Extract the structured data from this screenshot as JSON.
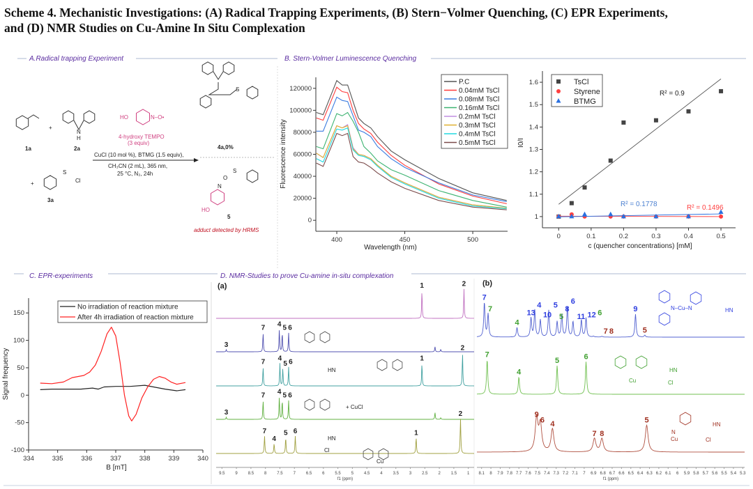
{
  "title": {
    "line1": "Scheme 4. Mechanistic Investigations: (A) Radical Trapping Experiments, (B) Stern−Volmer Quenching, (C) EPR Experiments,",
    "line2": "and (D) NMR Studies on Cu-Amine In Situ Complexation"
  },
  "sections": {
    "a": "A.Radical trapping  Experiment",
    "b": "B. Stern-Volmer  Luminescence   Quenching",
    "c": "C. EPR-experiments",
    "d": "D. NMR-Studies to prove Cu-amine in-situ complexation"
  },
  "colors": {
    "section": "#5a2ca0",
    "tempo": "#d04080",
    "hrms": "#c01020"
  },
  "panel_a": {
    "c1a": "1a",
    "c2a": "2a",
    "c3a": "3a",
    "c4a": "4a,0%",
    "c5": "5",
    "plus": "+",
    "nh_n": "N",
    "nh_h": "H",
    "tempo_ho": "HO",
    "tempo_no": "N–O•",
    "tempo_name": "4-hydroxy TEMPO",
    "tempo_equiv": "(3 equiv)",
    "cond1": "CuCl (10 mol %), BTMG (1.5 equiv),",
    "cond2": "CH₃CN (2 mL), 365 nm,",
    "cond3": "25 °C, N₂, 24h",
    "ts_cl": "Cl",
    "so2": "S",
    "o": "O",
    "n": "N",
    "ho": "HO",
    "hrms": "adduct detected by HRMS"
  },
  "chart_data": [
    {
      "type": "line",
      "id": "fluorescence",
      "xlabel": "Wavelength (nm)",
      "ylabel": "Fluorescence intensity",
      "xlim": [
        384.6,
        525.6
      ],
      "ylim": [
        -10000,
        130000
      ],
      "xticks": [
        400,
        450,
        500
      ],
      "yticks": [
        0,
        20000,
        40000,
        60000,
        80000,
        100000,
        120000
      ],
      "legend": "top-right",
      "x": [
        385,
        390,
        400,
        404,
        408,
        412,
        416,
        420,
        425,
        430,
        440,
        450,
        475,
        500,
        525
      ],
      "series": [
        {
          "name": "P.C",
          "color": "#555555",
          "values": [
            98000,
            96000,
            127000,
            123000,
            123000,
            108000,
            93000,
            88000,
            84000,
            76000,
            63000,
            55000,
            38000,
            25000,
            18000
          ]
        },
        {
          "name": "0.04mM TsCl",
          "color": "#ff3b3b",
          "values": [
            93000,
            91000,
            121000,
            117000,
            116000,
            100000,
            88000,
            83000,
            79000,
            71000,
            59000,
            50000,
            33000,
            22000,
            15000
          ]
        },
        {
          "name": "0.08mM TsCl",
          "color": "#3a7be0",
          "values": [
            81000,
            81000,
            112000,
            109000,
            108000,
            95000,
            82000,
            80000,
            76000,
            67000,
            56000,
            48000,
            34000,
            23000,
            17000
          ]
        },
        {
          "name": "0.16mM TsCl",
          "color": "#3cb371",
          "values": [
            67000,
            65000,
            97000,
            95000,
            98000,
            90000,
            80000,
            67000,
            61000,
            54000,
            46000,
            41000,
            27000,
            18000,
            12000
          ]
        },
        {
          "name": "0.2mM TsCl",
          "color": "#c08de0",
          "values": [
            61000,
            57000,
            86000,
            84000,
            87000,
            66000,
            60000,
            59000,
            56000,
            50000,
            40000,
            34000,
            21000,
            14000,
            11000
          ]
        },
        {
          "name": "0.3mM TsCl",
          "color": "#e0b030",
          "values": [
            61000,
            57000,
            86000,
            84000,
            86000,
            65000,
            60000,
            59000,
            56000,
            50000,
            40000,
            34000,
            21000,
            14000,
            11000
          ]
        },
        {
          "name": "0.4mM TsCl",
          "color": "#20d8e0",
          "values": [
            56000,
            53000,
            83000,
            82000,
            84000,
            64000,
            59000,
            58000,
            55000,
            49000,
            39000,
            33000,
            20000,
            13000,
            10500
          ]
        },
        {
          "name": "0.5mM TsCl",
          "color": "#7a4a4a",
          "values": [
            52000,
            49000,
            79000,
            77000,
            79000,
            58000,
            53000,
            52000,
            48000,
            43000,
            35000,
            29000,
            18000,
            12000,
            9500
          ]
        }
      ]
    },
    {
      "type": "scatter",
      "id": "stern-volmer",
      "xlabel": "c (quencher concentrations) [mM]",
      "ylabel": "I0/I",
      "xlim": [
        -0.05,
        0.545
      ],
      "ylim": [
        0.95,
        1.65
      ],
      "xticks": [
        0.0,
        0.1,
        0.2,
        0.3,
        0.4,
        0.5
      ],
      "yticks": [
        1.0,
        1.1,
        1.2,
        1.3,
        1.4,
        1.5,
        1.6
      ],
      "legend": "top-left",
      "x": [
        0,
        0.04,
        0.08,
        0.16,
        0.2,
        0.3,
        0.4,
        0.5
      ],
      "series": [
        {
          "name": "TsCl",
          "color": "#444444",
          "marker": "square",
          "values": [
            1.0,
            1.06,
            1.13,
            1.25,
            1.42,
            1.43,
            1.47,
            1.56
          ],
          "fit": [
            1.055,
            1.615
          ],
          "r2": "R² = 0.9"
        },
        {
          "name": "Styrene",
          "color": "#ff4040",
          "marker": "circle",
          "values": [
            1.0,
            1.01,
            1.0,
            1.0,
            1.0,
            1.0,
            1.0,
            1.0
          ],
          "fit": [
            1.002,
            1.0
          ],
          "r2": "R² = 0.1496"
        },
        {
          "name": "BTMG",
          "color": "#2a70e0",
          "marker": "triangle",
          "values": [
            1.0,
            1.0,
            1.01,
            1.01,
            1.0,
            1.0,
            1.0,
            1.02
          ],
          "fit": [
            0.999,
            1.012
          ],
          "r2": "R² = 0.1778"
        }
      ]
    },
    {
      "type": "line",
      "id": "epr",
      "xlabel": "B [mT]",
      "ylabel": "Signal frequency",
      "xlim": [
        334,
        340
      ],
      "ylim": [
        -100,
        177
      ],
      "xticks": [
        334,
        335,
        336,
        337,
        338,
        339,
        340
      ],
      "yticks": [
        -100,
        -50,
        0,
        50,
        100,
        150
      ],
      "legend": "top-right",
      "series": [
        {
          "name": "No irradiation of reaction mixture",
          "color": "#222222",
          "x": [
            334.4,
            334.8,
            335.3,
            335.8,
            336.2,
            336.4,
            336.6,
            337.0,
            337.5,
            338.0,
            338.3,
            338.7,
            339.1,
            339.4
          ],
          "values": [
            10,
            11,
            11,
            11,
            13,
            11,
            15,
            16,
            16,
            18,
            15,
            11,
            8,
            10
          ]
        },
        {
          "name": "After 4h irradiation of reaction mixture",
          "color": "#ff2020",
          "x": [
            334.4,
            334.8,
            335.2,
            335.5,
            335.9,
            336.1,
            336.3,
            336.5,
            336.7,
            336.85,
            337.0,
            337.15,
            337.3,
            337.45,
            337.55,
            337.7,
            337.9,
            338.1,
            338.3,
            338.5,
            338.7,
            338.9,
            339.1,
            339.4
          ],
          "values": [
            22,
            21,
            24,
            32,
            36,
            42,
            55,
            80,
            112,
            124,
            108,
            60,
            0,
            -38,
            -47,
            -35,
            -5,
            15,
            29,
            34,
            31,
            24,
            20,
            23
          ]
        }
      ]
    },
    {
      "type": "nmr",
      "id": "nmr-a",
      "panel_label": "(a)",
      "xlabel": "f1 (ppm)",
      "xlim": [
        9.7,
        0.8
      ],
      "xticks": [
        9.5,
        9.0,
        8.5,
        8.0,
        7.5,
        7.0,
        6.5,
        6.0,
        5.5,
        5.0,
        4.5,
        4.0,
        3.5,
        3.0,
        2.5,
        2.0,
        1.5,
        1.0
      ],
      "traces": [
        {
          "color": "#c070c0",
          "peaks": [
            {
              "ppm": 2.6,
              "h": 0.8,
              "label": "1"
            },
            {
              "ppm": 1.15,
              "h": 0.85,
              "label": "2"
            }
          ]
        },
        {
          "color": "#5050b0",
          "peaks": [
            {
              "ppm": 9.35,
              "h": 0.06,
              "label": "3"
            },
            {
              "ppm": 8.08,
              "h": 0.55,
              "label": "7"
            },
            {
              "ppm": 7.52,
              "h": 0.65,
              "label": "4"
            },
            {
              "ppm": 7.42,
              "h": 0.55,
              "label": "5"
            },
            {
              "ppm": 7.2,
              "h": 0.55,
              "label": "6"
            },
            {
              "ppm": 2.15,
              "h": 0.15,
              "label": ""
            },
            {
              "ppm": 1.95,
              "h": 0.07,
              "label": ""
            }
          ]
        },
        {
          "color": "#40a0a0",
          "peaks": [
            {
              "ppm": 8.08,
              "h": 0.55,
              "label": "7"
            },
            {
              "ppm": 7.5,
              "h": 0.65,
              "label": "4"
            },
            {
              "ppm": 7.4,
              "h": 0.5,
              "label": "5"
            },
            {
              "ppm": 7.2,
              "h": 0.55,
              "label": "6"
            },
            {
              "ppm": 2.6,
              "h": 0.65,
              "label": "1"
            },
            {
              "ppm": 1.2,
              "h": 0.95,
              "label": "2"
            }
          ]
        },
        {
          "color": "#60b040",
          "peaks": [
            {
              "ppm": 9.35,
              "h": 0.06,
              "label": "3"
            },
            {
              "ppm": 8.08,
              "h": 0.55,
              "label": "7"
            },
            {
              "ppm": 7.52,
              "h": 0.65,
              "label": "4"
            },
            {
              "ppm": 7.42,
              "h": 0.55,
              "label": "5"
            },
            {
              "ppm": 7.2,
              "h": 0.55,
              "label": "6"
            },
            {
              "ppm": 2.15,
              "h": 0.2,
              "label": ""
            },
            {
              "ppm": 1.95,
              "h": 0.05,
              "label": ""
            }
          ]
        },
        {
          "color": "#a0a040",
          "peaks": [
            {
              "ppm": 8.03,
              "h": 0.5,
              "label": "7"
            },
            {
              "ppm": 7.7,
              "h": 0.28,
              "label": "4"
            },
            {
              "ppm": 7.3,
              "h": 0.45,
              "label": "5"
            },
            {
              "ppm": 6.97,
              "h": 0.5,
              "label": "6"
            },
            {
              "ppm": 2.8,
              "h": 0.45,
              "label": "1"
            },
            {
              "ppm": 1.27,
              "h": 1.0,
              "label": "2"
            }
          ]
        }
      ],
      "structure_labels": {
        "cucl": "+ CuCl",
        "cl": "Cl",
        "cu": "Cu",
        "n": "N",
        "h": "H",
        "hn": "HN"
      }
    },
    {
      "type": "nmr",
      "id": "nmr-b",
      "panel_label": "(b)",
      "xlabel": "f1 (ppm)",
      "xlim": [
        8.15,
        5.28
      ],
      "xticks": [
        8.1,
        8.0,
        7.9,
        7.8,
        7.7,
        7.6,
        7.5,
        7.4,
        7.3,
        7.2,
        7.1,
        7.0,
        6.9,
        6.8,
        6.7,
        6.6,
        6.5,
        6.4,
        6.3,
        6.2,
        6.1,
        6.0,
        5.9,
        5.8,
        5.7,
        5.6,
        5.5,
        5.4,
        5.3
      ],
      "traces": [
        {
          "color": "#5060d0",
          "peaks": [
            {
              "ppm": 8.07,
              "h": 0.9,
              "label": "7",
              "lc": "#3040e0"
            },
            {
              "ppm": 8.03,
              "h": 0.6,
              "label": "7",
              "lc": "#40a030"
            },
            {
              "ppm": 7.72,
              "h": 0.25,
              "label": "4",
              "lc": "#40a030"
            },
            {
              "ppm": 7.57,
              "h": 0.5,
              "label": "13",
              "lc": "#3040e0"
            },
            {
              "ppm": 7.53,
              "h": 0.7,
              "label": "4",
              "lc": "#3040e0"
            },
            {
              "ppm": 7.47,
              "h": 0.45,
              "label": "10",
              "lc": "#3040e0"
            },
            {
              "ppm": 7.38,
              "h": 0.7,
              "label": "5",
              "lc": "#3040e0"
            },
            {
              "ppm": 7.29,
              "h": 0.4,
              "label": "5",
              "lc": "#40a030"
            },
            {
              "ppm": 7.24,
              "h": 0.6,
              "label": "8",
              "lc": "#3040e0"
            },
            {
              "ppm": 7.18,
              "h": 0.8,
              "label": "6",
              "lc": "#3040e0"
            },
            {
              "ppm": 7.12,
              "h": 0.4,
              "label": "11",
              "lc": "#3040e0"
            },
            {
              "ppm": 7.03,
              "h": 0.45,
              "label": "12",
              "lc": "#3040e0"
            },
            {
              "ppm": 6.98,
              "h": 0.5,
              "label": "6",
              "lc": "#40a030"
            },
            {
              "ppm": 6.9,
              "h": 0.02,
              "label": "7",
              "lc": "#a03020"
            },
            {
              "ppm": 6.81,
              "h": 0.02,
              "label": "8",
              "lc": "#a03020"
            },
            {
              "ppm": 6.45,
              "h": 0.6,
              "label": "9",
              "lc": "#3040e0"
            },
            {
              "ppm": 6.35,
              "h": 0.05,
              "label": "5",
              "lc": "#a03020"
            }
          ]
        },
        {
          "color": "#70c050",
          "peaks": [
            {
              "ppm": 8.04,
              "h": 0.9,
              "label": "7",
              "lc": "#40a030"
            },
            {
              "ppm": 7.7,
              "h": 0.45,
              "label": "4",
              "lc": "#40a030"
            },
            {
              "ppm": 7.29,
              "h": 0.75,
              "label": "5",
              "lc": "#40a030"
            },
            {
              "ppm": 6.98,
              "h": 0.85,
              "label": "6",
              "lc": "#40a030"
            }
          ]
        },
        {
          "color": "#b05040",
          "peaks": [
            {
              "ppm": 7.51,
              "h": 0.85,
              "label": "9",
              "lc": "#a03020"
            },
            {
              "ppm": 7.47,
              "h": 0.7,
              "label": "6",
              "lc": "#a03020"
            },
            {
              "ppm": 7.34,
              "h": 0.6,
              "label": "4",
              "lc": "#a03020"
            },
            {
              "ppm": 6.89,
              "h": 0.35,
              "label": "7",
              "lc": "#a03020"
            },
            {
              "ppm": 6.81,
              "h": 0.35,
              "label": "8",
              "lc": "#a03020"
            },
            {
              "ppm": 6.33,
              "h": 0.7,
              "label": "5",
              "lc": "#a03020"
            }
          ]
        }
      ],
      "structure_labels": {
        "cu": "Cu",
        "n": "N",
        "hn": "HN",
        "cl": "Cl",
        "ncu": "N–Cu–N"
      }
    }
  ]
}
